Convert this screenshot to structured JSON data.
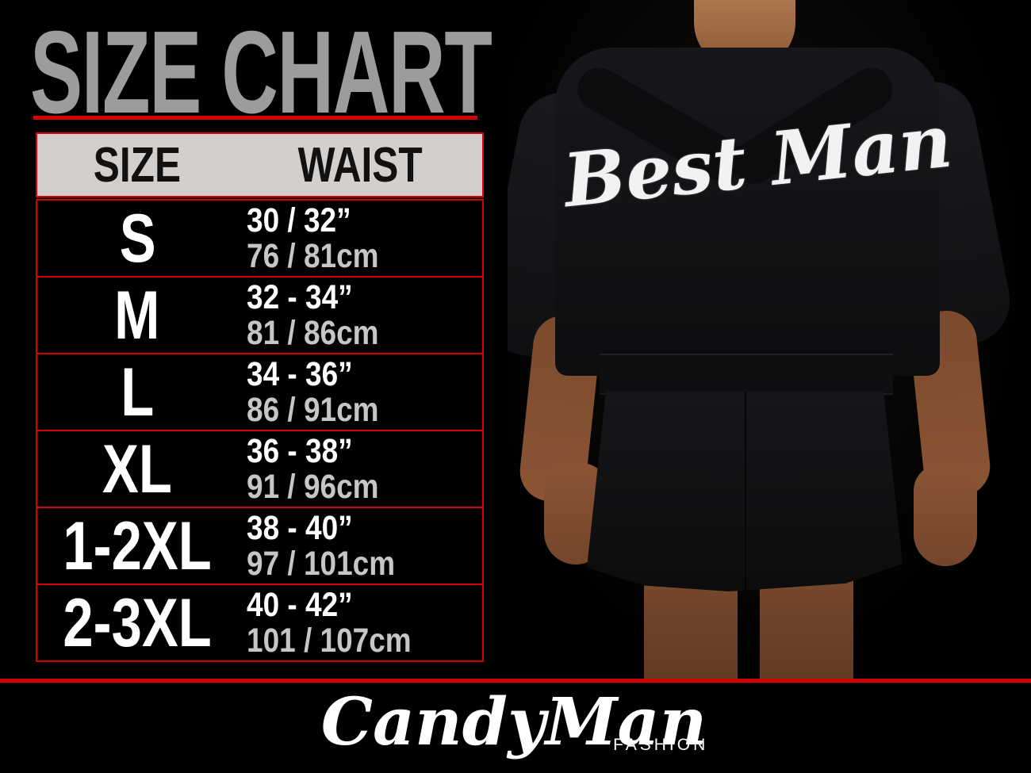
{
  "page": {
    "title": "SIZE CHART",
    "colors": {
      "background": "#000000",
      "accent_red": "#d40000",
      "title_gray": "#9c9c9c",
      "header_bg": "#d2cfcd",
      "header_text": "#111111",
      "row_text_primary": "#ffffff",
      "row_text_secondary": "#c6c6c6",
      "mesh_brown": "#6b3c22",
      "skin_tone": "#8f5c39"
    }
  },
  "size_chart": {
    "columns": {
      "size": "SIZE",
      "waist": "WAIST"
    },
    "rows": [
      {
        "size": "S",
        "waist_in": "30 / 32”",
        "waist_cm": "76 / 81cm"
      },
      {
        "size": "M",
        "waist_in": "32 - 34”",
        "waist_cm": "81 / 86cm"
      },
      {
        "size": "L",
        "waist_in": "34 - 36”",
        "waist_cm": "86 / 91cm"
      },
      {
        "size": "XL",
        "waist_in": "36 - 38”",
        "waist_cm": "91 / 96cm"
      },
      {
        "size": "1-2XL",
        "waist_in": "38 - 40”",
        "waist_cm": "97 / 101cm"
      },
      {
        "size": "2-3XL",
        "waist_in": "40 - 42”",
        "waist_cm": "101 / 107cm"
      }
    ]
  },
  "photo": {
    "description": "model-back-view-black-mesh-robe",
    "garment_text": "Best Man"
  },
  "footer": {
    "brand": "CandyMan",
    "brand_sub": "FASHION"
  }
}
